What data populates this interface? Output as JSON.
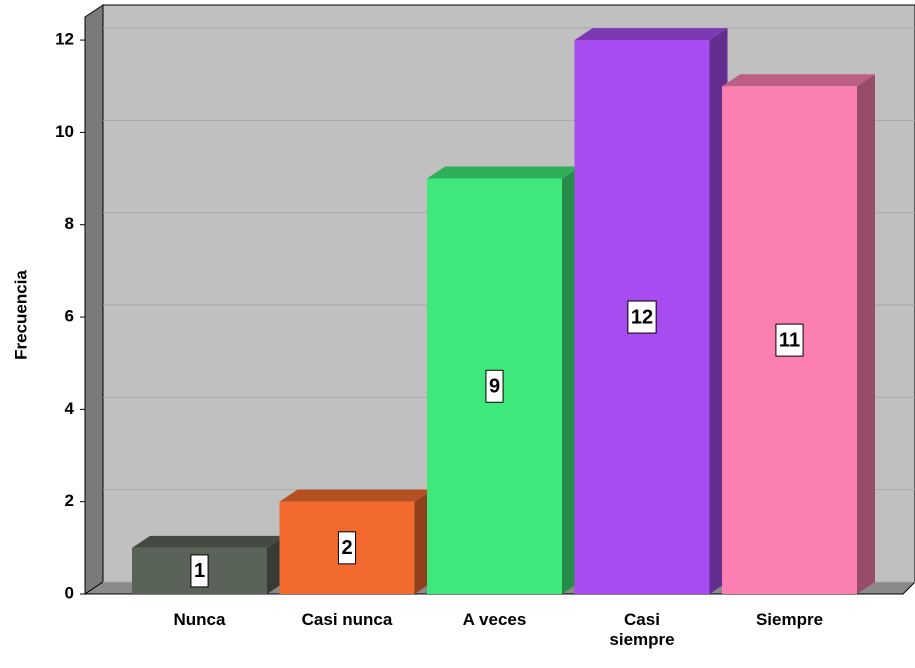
{
  "chart_data": {
    "type": "bar3d",
    "y_label": "Frecuencia",
    "categories": [
      "Nunca",
      "Casi nunca",
      "A veces",
      "Casi\nsiempre",
      "Siempre"
    ],
    "values": [
      1,
      2,
      9,
      12,
      11
    ],
    "colors": [
      "#5a6358",
      "#f26a2e",
      "#3fe87a",
      "#a64cf0",
      "#fb7fb1"
    ],
    "ylim": [
      0,
      12.5
    ],
    "yticks": [
      0,
      2,
      4,
      6,
      8,
      10,
      12
    ],
    "grid": true
  }
}
